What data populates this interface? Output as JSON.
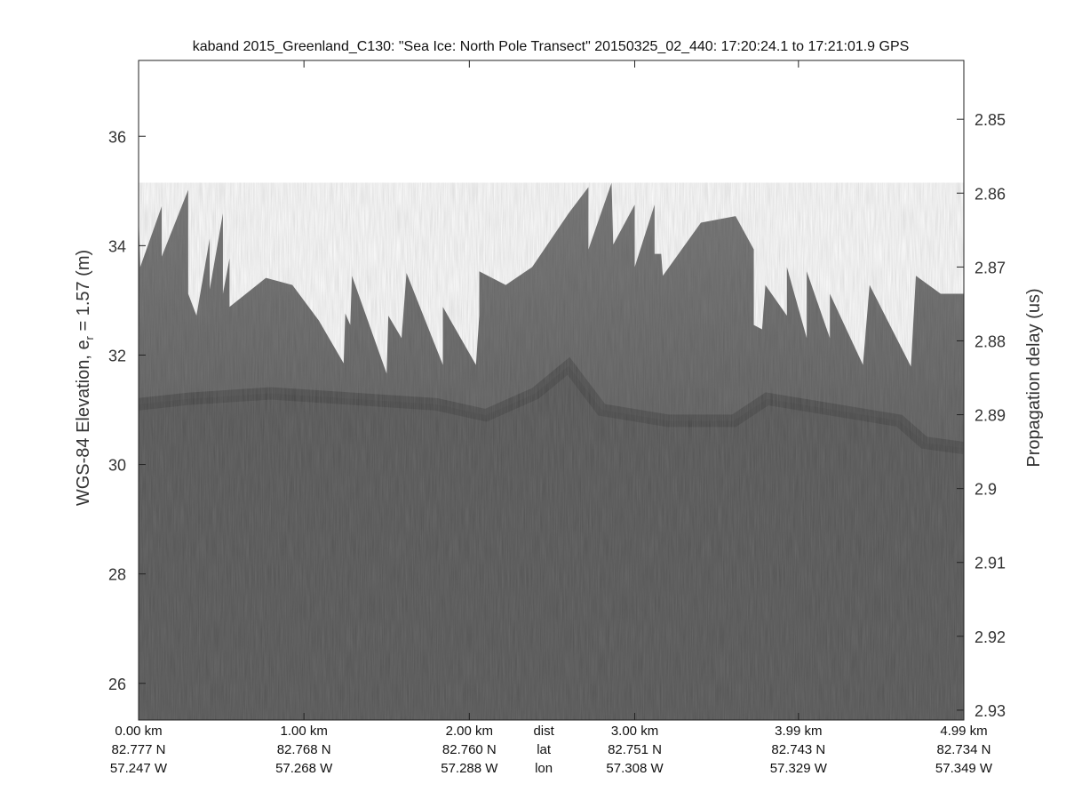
{
  "chart_data": {
    "type": "heatmap",
    "title": "kaband 2015_Greenland_C130: \"Sea Ice: North Pole Transect\"  20150325_02_440: 17:20:24.1 to 17:21:01.9 GPS",
    "ylabel_main": "WGS-84 Elevation, e",
    "ylabel_sub": "r",
    "ylabel_tail": " = 1.57 (m)",
    "y2label": "Propagation delay (us)",
    "xlim_km": [
      0,
      4.99
    ],
    "ylim": [
      25.33,
      37.84
    ],
    "yticks": [
      26,
      28,
      30,
      32,
      34,
      36
    ],
    "y2ticks": [
      "2.85",
      "2.86",
      "2.87",
      "2.88",
      "2.89",
      "2.9",
      "2.91",
      "2.92",
      "2.93"
    ],
    "y2tick_elev": [
      36.31,
      34.96,
      33.61,
      32.26,
      30.91,
      29.56,
      28.21,
      26.86,
      25.51
    ],
    "grid": false,
    "colormap": "gray",
    "bottom_labels": {
      "row_names": [
        "dist",
        "lat",
        "lon"
      ],
      "ticks": [
        {
          "km": 0.0,
          "dist": "0.00 km",
          "lat": "82.777 N",
          "lon": "57.247 W"
        },
        {
          "km": 1.0,
          "dist": "1.00 km",
          "lat": "82.768 N",
          "lon": "57.268 W"
        },
        {
          "km": 2.0,
          "dist": "2.00 km",
          "lat": "82.760 N",
          "lon": "57.288 W"
        },
        {
          "km": 3.0,
          "dist": "3.00 km",
          "lat": "82.751 N",
          "lon": "57.308 W"
        },
        {
          "km": 3.99,
          "dist": "3.99 km",
          "lat": "82.743 N",
          "lon": "57.329 W"
        },
        {
          "km": 4.99,
          "dist": "4.99 km",
          "lat": "82.734 N",
          "lon": "57.349 W"
        }
      ],
      "row_label_km": 2.45
    },
    "surface_top": [
      [
        0,
        34.62
      ],
      [
        0.01,
        33.61
      ],
      [
        0.14,
        34.72
      ],
      [
        0.14,
        33.8
      ],
      [
        0.3,
        35.02
      ],
      [
        0.3,
        33.12
      ],
      [
        0.35,
        32.72
      ],
      [
        0.43,
        34.13
      ],
      [
        0.43,
        33.2
      ],
      [
        0.51,
        34.59
      ],
      [
        0.51,
        33.12
      ],
      [
        0.55,
        33.77
      ],
      [
        0.55,
        32.88
      ],
      [
        0.77,
        33.41
      ],
      [
        0.93,
        33.28
      ],
      [
        1.09,
        32.63
      ],
      [
        1.24,
        31.85
      ],
      [
        1.25,
        32.76
      ],
      [
        1.28,
        32.55
      ],
      [
        1.29,
        33.45
      ],
      [
        1.5,
        31.66
      ],
      [
        1.51,
        32.72
      ],
      [
        1.59,
        32.31
      ],
      [
        1.62,
        33.5
      ],
      [
        1.84,
        31.82
      ],
      [
        1.84,
        32.88
      ],
      [
        2.04,
        31.82
      ],
      [
        2.06,
        32.72
      ],
      [
        2.06,
        33.53
      ],
      [
        2.22,
        33.28
      ],
      [
        2.38,
        33.61
      ],
      [
        2.6,
        34.59
      ],
      [
        2.72,
        35.07
      ],
      [
        2.72,
        33.93
      ],
      [
        2.86,
        35.15
      ],
      [
        2.87,
        34.02
      ],
      [
        3.0,
        34.75
      ],
      [
        3.0,
        33.61
      ],
      [
        3.12,
        34.75
      ],
      [
        3.12,
        33.85
      ],
      [
        3.16,
        33.85
      ],
      [
        3.17,
        33.45
      ],
      [
        3.4,
        34.42
      ],
      [
        3.61,
        34.54
      ],
      [
        3.72,
        33.93
      ],
      [
        3.72,
        32.55
      ],
      [
        3.77,
        32.47
      ],
      [
        3.79,
        33.28
      ],
      [
        3.92,
        32.72
      ],
      [
        3.92,
        33.61
      ],
      [
        4.04,
        32.31
      ],
      [
        4.04,
        33.53
      ],
      [
        4.18,
        32.31
      ],
      [
        4.18,
        33.12
      ],
      [
        4.38,
        31.82
      ],
      [
        4.42,
        33.28
      ],
      [
        4.67,
        31.79
      ],
      [
        4.7,
        33.45
      ],
      [
        4.85,
        33.12
      ],
      [
        4.98,
        33.12
      ]
    ],
    "ice_layer": [
      [
        0,
        31.1
      ],
      [
        0.3,
        31.2
      ],
      [
        0.8,
        31.3
      ],
      [
        1.3,
        31.2
      ],
      [
        1.8,
        31.1
      ],
      [
        2.1,
        30.9
      ],
      [
        2.4,
        31.3
      ],
      [
        2.6,
        31.8
      ],
      [
        2.8,
        31.0
      ],
      [
        3.2,
        30.8
      ],
      [
        3.6,
        30.8
      ],
      [
        3.8,
        31.2
      ],
      [
        4.2,
        31.0
      ],
      [
        4.6,
        30.8
      ],
      [
        4.75,
        30.4
      ],
      [
        4.99,
        30.3
      ]
    ]
  }
}
